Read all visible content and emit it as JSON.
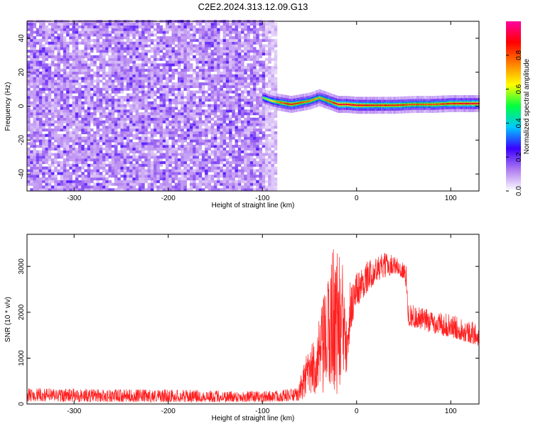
{
  "title": "C2E2.2024.313.12.09.G13",
  "chart_data": [
    {
      "type": "heatmap",
      "xlabel": "Height of straight line (km)",
      "ylabel": "Frequency (Hz)",
      "xlim": [
        -350,
        130
      ],
      "ylim": [
        -50,
        50
      ],
      "xticks": [
        -300,
        -200,
        -100,
        0,
        100
      ],
      "yticks": [
        -40,
        -20,
        0,
        20,
        40
      ],
      "colorbar": {
        "label": "Normalized spectral amplitude",
        "range": [
          0,
          1
        ],
        "ticks": [
          0.0,
          0.2,
          0.4,
          0.6,
          0.8
        ],
        "colors": [
          "#ffffff",
          "#b07cf0",
          "#3b00ff",
          "#00c8ff",
          "#00ff40",
          "#ffff00",
          "#ff8000",
          "#ff0000",
          "#ff00a0"
        ]
      },
      "noise_region_x": [
        -350,
        -85
      ],
      "signal_track": [
        {
          "x": -100,
          "freq": 5,
          "amp": 0.55
        },
        {
          "x": -90,
          "freq": 3,
          "amp": 0.65
        },
        {
          "x": -80,
          "freq": 2,
          "amp": 0.8
        },
        {
          "x": -70,
          "freq": 1,
          "amp": 0.85
        },
        {
          "x": -60,
          "freq": 2,
          "amp": 0.8
        },
        {
          "x": -50,
          "freq": 3,
          "amp": 0.75
        },
        {
          "x": -40,
          "freq": 5,
          "amp": 0.7
        },
        {
          "x": -30,
          "freq": 3,
          "amp": 0.8
        },
        {
          "x": -20,
          "freq": 1,
          "amp": 0.9
        },
        {
          "x": -10,
          "freq": 1,
          "amp": 0.9
        },
        {
          "x": 0,
          "freq": 0.5,
          "amp": 0.9
        },
        {
          "x": 20,
          "freq": 0.5,
          "amp": 0.85
        },
        {
          "x": 40,
          "freq": 0.5,
          "amp": 0.85
        },
        {
          "x": 60,
          "freq": 1,
          "amp": 0.8
        },
        {
          "x": 80,
          "freq": 1,
          "amp": 0.8
        },
        {
          "x": 100,
          "freq": 1.5,
          "amp": 0.85
        },
        {
          "x": 120,
          "freq": 1.5,
          "amp": 0.9
        },
        {
          "x": 130,
          "freq": 1.5,
          "amp": 0.9
        }
      ]
    },
    {
      "type": "line",
      "xlabel": "Height of straight line (km)",
      "ylabel": "SNR (10 * v/v)",
      "xlim": [
        -350,
        130
      ],
      "ylim": [
        0,
        3700
      ],
      "xticks": [
        -300,
        -200,
        -100,
        0,
        100
      ],
      "yticks": [
        0,
        1000,
        2000,
        3000
      ],
      "series": [
        {
          "color": "#ff2020",
          "envelope": [
            {
              "x": -350,
              "lo": 60,
              "hi": 350
            },
            {
              "x": -300,
              "lo": 40,
              "hi": 340
            },
            {
              "x": -250,
              "lo": 40,
              "hi": 320
            },
            {
              "x": -200,
              "lo": 40,
              "hi": 320
            },
            {
              "x": -150,
              "lo": 40,
              "hi": 300
            },
            {
              "x": -100,
              "lo": 40,
              "hi": 280
            },
            {
              "x": -62,
              "lo": 60,
              "hi": 350
            },
            {
              "x": -55,
              "lo": 100,
              "hi": 1000
            },
            {
              "x": -45,
              "lo": 200,
              "hi": 1400
            },
            {
              "x": -38,
              "lo": 100,
              "hi": 2000
            },
            {
              "x": -30,
              "lo": 200,
              "hi": 2800
            },
            {
              "x": -25,
              "lo": 300,
              "hi": 3600
            },
            {
              "x": -20,
              "lo": 100,
              "hi": 3400
            },
            {
              "x": -15,
              "lo": 300,
              "hi": 3100
            },
            {
              "x": -10,
              "lo": 700,
              "hi": 2800
            },
            {
              "x": -5,
              "lo": 1700,
              "hi": 2700
            },
            {
              "x": 0,
              "lo": 2100,
              "hi": 2900
            },
            {
              "x": 10,
              "lo": 2400,
              "hi": 3100
            },
            {
              "x": 20,
              "lo": 2650,
              "hi": 3200
            },
            {
              "x": 30,
              "lo": 2750,
              "hi": 3300
            },
            {
              "x": 40,
              "lo": 2850,
              "hi": 3250
            },
            {
              "x": 50,
              "lo": 2700,
              "hi": 3100
            },
            {
              "x": 53,
              "lo": 2500,
              "hi": 3000
            },
            {
              "x": 55,
              "lo": 1700,
              "hi": 2200
            },
            {
              "x": 70,
              "lo": 1600,
              "hi": 2100
            },
            {
              "x": 90,
              "lo": 1500,
              "hi": 2000
            },
            {
              "x": 110,
              "lo": 1400,
              "hi": 1900
            },
            {
              "x": 130,
              "lo": 1250,
              "hi": 1750
            }
          ]
        }
      ]
    }
  ]
}
